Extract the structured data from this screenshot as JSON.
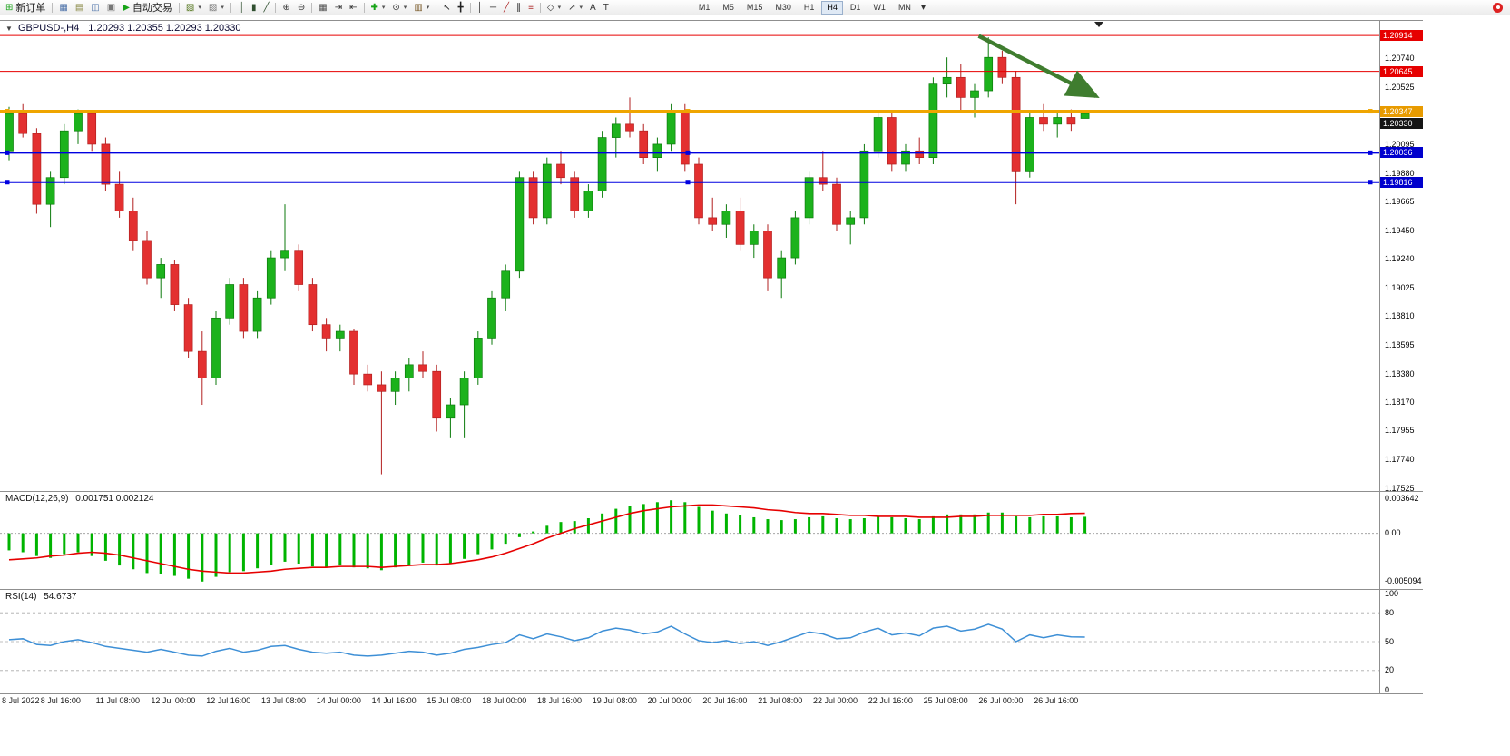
{
  "toolbar": {
    "left_items": [
      {
        "type": "button",
        "name": "new-order",
        "glyph": "⊞",
        "glyph_color": "#1fa51f",
        "label": "新订单"
      },
      {
        "type": "sep"
      },
      {
        "type": "icon",
        "name": "market-watch",
        "glyph": "▦",
        "glyph_color": "#4a70a8"
      },
      {
        "type": "icon",
        "name": "data-window",
        "glyph": "▤",
        "glyph_color": "#8a8a46"
      },
      {
        "type": "icon",
        "name": "navigator",
        "glyph": "◫",
        "glyph_color": "#4a70a8"
      },
      {
        "type": "icon",
        "name": "terminal",
        "glyph": "▣",
        "glyph_color": "#777777"
      },
      {
        "type": "button",
        "name": "autotrading",
        "glyph": "▶",
        "glyph_color": "#17a317",
        "label": "自动交易"
      },
      {
        "type": "sep"
      },
      {
        "type": "icon",
        "name": "new-chart",
        "glyph": "▧",
        "glyph_color": "#55771f",
        "dropdown": true
      },
      {
        "type": "icon",
        "name": "profiles",
        "glyph": "▨",
        "glyph_color": "#777777",
        "dropdown": true
      },
      {
        "type": "sep"
      },
      {
        "type": "icon",
        "name": "bar-chart",
        "glyph": "║",
        "glyph_color": "#2f4f2f"
      },
      {
        "type": "icon",
        "name": "candlestick-chart",
        "glyph": "▮",
        "glyph_color": "#2f4f2f"
      },
      {
        "type": "icon",
        "name": "line-chart",
        "glyph": "╱",
        "glyph_color": "#2f4f2f"
      },
      {
        "type": "sep"
      },
      {
        "type": "icon",
        "name": "zoom-in",
        "glyph": "⊕",
        "glyph_color": "#333333"
      },
      {
        "type": "icon",
        "name": "zoom-out",
        "glyph": "⊖",
        "glyph_color": "#333333"
      },
      {
        "type": "sep"
      },
      {
        "type": "icon",
        "name": "tile-windows",
        "glyph": "▦",
        "glyph_color": "#555555"
      },
      {
        "type": "icon",
        "name": "auto-scroll",
        "glyph": "⇥",
        "glyph_color": "#333333"
      },
      {
        "type": "icon",
        "name": "chart-shift",
        "glyph": "⇤",
        "glyph_color": "#333333"
      },
      {
        "type": "sep"
      },
      {
        "type": "icon",
        "name": "indicators",
        "glyph": "✚",
        "glyph_color": "#17a317",
        "dropdown": true
      },
      {
        "type": "icon",
        "name": "periods",
        "glyph": "⊙",
        "glyph_color": "#333333",
        "dropdown": true
      },
      {
        "type": "icon",
        "name": "templates",
        "glyph": "▥",
        "glyph_color": "#7a5a2a",
        "dropdown": true
      },
      {
        "type": "sep"
      },
      {
        "type": "icon",
        "name": "cursor",
        "glyph": "↖",
        "glyph_color": "#222222"
      },
      {
        "type": "icon",
        "name": "crosshair",
        "glyph": "╋",
        "glyph_color": "#222222"
      },
      {
        "type": "sep"
      },
      {
        "type": "icon",
        "name": "vertical-line",
        "glyph": "│",
        "glyph_color": "#222222"
      },
      {
        "type": "icon",
        "name": "horizontal-line",
        "glyph": "─",
        "glyph_color": "#222222"
      },
      {
        "type": "icon",
        "name": "trendline",
        "glyph": "╱",
        "glyph_color": "#b03030"
      },
      {
        "type": "icon",
        "name": "equidistant-channel",
        "glyph": "∥",
        "glyph_color": "#222222"
      },
      {
        "type": "icon",
        "name": "fibonacci-retracement",
        "glyph": "≡",
        "glyph_color": "#b03030"
      },
      {
        "type": "sep"
      },
      {
        "type": "icon",
        "name": "shapes",
        "glyph": "◇",
        "glyph_color": "#333333",
        "dropdown": true
      },
      {
        "type": "icon",
        "name": "arrows",
        "glyph": "↗",
        "glyph_color": "#333333",
        "dropdown": true
      },
      {
        "type": "icon",
        "name": "text",
        "glyph": "A",
        "glyph_color": "#333333"
      },
      {
        "type": "icon",
        "name": "text-label",
        "glyph": "T",
        "glyph_color": "#333333"
      },
      {
        "type": "spacer"
      }
    ],
    "timeframes": [
      "M1",
      "M5",
      "M15",
      "M30",
      "H1",
      "H4",
      "D1",
      "W1",
      "MN"
    ],
    "active_timeframe": "H4",
    "overflow_glyph": "▾",
    "notification_color": "#dd2222"
  },
  "chart": {
    "header_symbol": "GBPUSD-,H4",
    "header_ohlc": "1.20293 1.20355 1.20293 1.20330",
    "collapse_glyph": "▼",
    "price_axis_labels": [
      "1.20740",
      "1.20525",
      "1.20095",
      "1.19880",
      "1.19665",
      "1.19450",
      "1.19240",
      "1.19025",
      "1.18810",
      "1.18595",
      "1.18380",
      "1.18170",
      "1.17955",
      "1.17740",
      "1.17525"
    ],
    "current_price_badge": {
      "text": "1.20330",
      "bg": "#151515"
    },
    "lines": [
      {
        "name": "resistance-line-1",
        "price": 1.20914,
        "color": "#e60000",
        "width": 1,
        "badge": "1.20914",
        "badge_bg": "#e60000",
        "handles": false
      },
      {
        "name": "resistance-line-2",
        "price": 1.20645,
        "color": "#e60000",
        "width": 1,
        "badge": "1.20645",
        "badge_bg": "#e60000",
        "handles": false
      },
      {
        "name": "pivot-line-orange",
        "price": 1.20347,
        "color": "#efa500",
        "width": 3,
        "badge": "1.20347",
        "badge_bg": "#e89b00",
        "handles": true
      },
      {
        "name": "support-line-1",
        "price": 1.20036,
        "color": "#0000e0",
        "width": 2,
        "badge": "1.20036",
        "badge_bg": "#0000cd",
        "handles": true
      },
      {
        "name": "support-line-2",
        "price": 1.19816,
        "color": "#0000e0",
        "width": 2,
        "badge": "1.19816",
        "badge_bg": "#0000cd",
        "handles": true
      }
    ],
    "trend_arrow": {
      "from_bar": 70.3,
      "from_price": 1.2091,
      "to_bar": 78.8,
      "to_price": 1.2046,
      "color": "#3f7d2f"
    },
    "bull_color": "#1cb21c",
    "bear_color": "#e33030",
    "bull_wick": "#0c7a0c",
    "bear_wick": "#b22020"
  },
  "chart_data": {
    "type": "candlestick",
    "symbol": "GBPUSD",
    "period": "H4",
    "x_labels": [
      [
        0,
        "8 Jul 2022"
      ],
      [
        4,
        "8 Jul 16:00"
      ],
      [
        8,
        "11 Jul 08:00"
      ],
      [
        12,
        "12 Jul 00:00"
      ],
      [
        16,
        "12 Jul 16:00"
      ],
      [
        20,
        "13 Jul 08:00"
      ],
      [
        24,
        "14 Jul 00:00"
      ],
      [
        28,
        "14 Jul 16:00"
      ],
      [
        32,
        "15 Jul 08:00"
      ],
      [
        36,
        "18 Jul 00:00"
      ],
      [
        40,
        "18 Jul 16:00"
      ],
      [
        44,
        "19 Jul 08:00"
      ],
      [
        48,
        "20 Jul 00:00"
      ],
      [
        52,
        "20 Jul 16:00"
      ],
      [
        56,
        "21 Jul 08:00"
      ],
      [
        60,
        "22 Jul 00:00"
      ],
      [
        64,
        "22 Jul 16:00"
      ],
      [
        68,
        "25 Jul 08:00"
      ],
      [
        72,
        "26 Jul 00:00"
      ],
      [
        76,
        "26 Jul 16:00"
      ]
    ],
    "candles": [
      [
        1.2005,
        1.2038,
        1.1998,
        1.2033
      ],
      [
        1.2033,
        1.204,
        1.2015,
        1.2018
      ],
      [
        1.2018,
        1.2022,
        1.1958,
        1.1965
      ],
      [
        1.1965,
        1.199,
        1.1948,
        1.1985
      ],
      [
        1.1985,
        1.2025,
        1.198,
        1.202
      ],
      [
        1.202,
        1.2036,
        1.201,
        1.2033
      ],
      [
        1.2033,
        1.2035,
        1.2005,
        1.201
      ],
      [
        1.201,
        1.2015,
        1.1975,
        1.198
      ],
      [
        1.198,
        1.199,
        1.1955,
        1.196
      ],
      [
        1.196,
        1.197,
        1.193,
        1.1938
      ],
      [
        1.1938,
        1.1945,
        1.1905,
        1.191
      ],
      [
        1.191,
        1.1925,
        1.1895,
        1.192
      ],
      [
        1.192,
        1.1923,
        1.1885,
        1.189
      ],
      [
        1.189,
        1.1895,
        1.185,
        1.1855
      ],
      [
        1.1855,
        1.187,
        1.1815,
        1.1835
      ],
      [
        1.1835,
        1.1885,
        1.183,
        1.188
      ],
      [
        1.188,
        1.191,
        1.1875,
        1.1905
      ],
      [
        1.1905,
        1.191,
        1.1865,
        1.187
      ],
      [
        1.187,
        1.19,
        1.1865,
        1.1895
      ],
      [
        1.1895,
        1.193,
        1.189,
        1.1925
      ],
      [
        1.1925,
        1.1965,
        1.1915,
        1.193
      ],
      [
        1.193,
        1.1935,
        1.19,
        1.1905
      ],
      [
        1.1905,
        1.191,
        1.187,
        1.1875
      ],
      [
        1.1875,
        1.188,
        1.1855,
        1.1865
      ],
      [
        1.1865,
        1.1875,
        1.1855,
        1.187
      ],
      [
        1.187,
        1.1872,
        1.183,
        1.1838
      ],
      [
        1.1838,
        1.1845,
        1.1825,
        1.183
      ],
      [
        1.183,
        1.184,
        1.1763,
        1.1825
      ],
      [
        1.1825,
        1.184,
        1.1815,
        1.1835
      ],
      [
        1.1835,
        1.185,
        1.1825,
        1.1845
      ],
      [
        1.1845,
        1.1855,
        1.1835,
        1.184
      ],
      [
        1.184,
        1.1845,
        1.1795,
        1.1805
      ],
      [
        1.1805,
        1.182,
        1.179,
        1.1815
      ],
      [
        1.1815,
        1.184,
        1.179,
        1.1835
      ],
      [
        1.1835,
        1.187,
        1.183,
        1.1865
      ],
      [
        1.1865,
        1.19,
        1.186,
        1.1895
      ],
      [
        1.1895,
        1.192,
        1.1885,
        1.1915
      ],
      [
        1.1915,
        1.199,
        1.191,
        1.1985
      ],
      [
        1.1985,
        1.199,
        1.195,
        1.1955
      ],
      [
        1.1955,
        1.2,
        1.195,
        1.1995
      ],
      [
        1.1995,
        1.2005,
        1.198,
        1.1985
      ],
      [
        1.1985,
        1.199,
        1.1955,
        1.196
      ],
      [
        1.196,
        1.198,
        1.1955,
        1.1975
      ],
      [
        1.1975,
        1.202,
        1.197,
        1.2015
      ],
      [
        1.2015,
        1.203,
        1.2,
        1.2025
      ],
      [
        1.2025,
        1.2045,
        1.2015,
        1.202
      ],
      [
        1.202,
        1.2025,
        1.1995,
        1.2
      ],
      [
        1.2,
        1.2015,
        1.199,
        1.201
      ],
      [
        1.201,
        1.204,
        1.2005,
        1.2035
      ],
      [
        1.2035,
        1.204,
        1.199,
        1.1995
      ],
      [
        1.1995,
        1.2,
        1.195,
        1.1955
      ],
      [
        1.1955,
        1.197,
        1.1945,
        1.195
      ],
      [
        1.195,
        1.1965,
        1.194,
        1.196
      ],
      [
        1.196,
        1.197,
        1.193,
        1.1935
      ],
      [
        1.1935,
        1.195,
        1.1925,
        1.1945
      ],
      [
        1.1945,
        1.195,
        1.19,
        1.191
      ],
      [
        1.191,
        1.193,
        1.1895,
        1.1925
      ],
      [
        1.1925,
        1.196,
        1.192,
        1.1955
      ],
      [
        1.1955,
        1.199,
        1.195,
        1.1985
      ],
      [
        1.1985,
        1.2005,
        1.1975,
        1.198
      ],
      [
        1.198,
        1.1985,
        1.1945,
        1.195
      ],
      [
        1.195,
        1.196,
        1.1935,
        1.1955
      ],
      [
        1.1955,
        1.201,
        1.195,
        1.2005
      ],
      [
        1.2005,
        1.2035,
        1.2,
        1.203
      ],
      [
        1.203,
        1.2035,
        1.199,
        1.1995
      ],
      [
        1.1995,
        1.201,
        1.199,
        1.2005
      ],
      [
        1.2005,
        1.2015,
        1.1995,
        1.2
      ],
      [
        1.2,
        1.206,
        1.1995,
        1.2055
      ],
      [
        1.2055,
        1.2075,
        1.2045,
        1.206
      ],
      [
        1.206,
        1.207,
        1.2035,
        1.2045
      ],
      [
        1.2045,
        1.2055,
        1.203,
        1.205
      ],
      [
        1.205,
        1.209,
        1.2045,
        1.2075
      ],
      [
        1.2075,
        1.208,
        1.2055,
        1.206
      ],
      [
        1.206,
        1.2065,
        1.1965,
        1.199
      ],
      [
        1.199,
        1.2035,
        1.1985,
        1.203
      ],
      [
        1.203,
        1.204,
        1.202,
        1.2025
      ],
      [
        1.2025,
        1.2035,
        1.2015,
        1.203
      ],
      [
        1.203,
        1.2036,
        1.202,
        1.2025
      ],
      [
        1.20293,
        1.20355,
        1.20293,
        1.2033
      ]
    ],
    "indicators": {
      "macd": {
        "label": "MACD(12,26,9)",
        "values_text": "0.001751 0.002124",
        "main_value": 0.001751,
        "signal_value": 0.002124,
        "axis_labels": [
          "0.003642",
          "0.00",
          "-0.005094"
        ],
        "axis_values": [
          0.003642,
          0,
          -0.005094
        ],
        "histogram_color": "#00b400",
        "signal_color": "#e60000",
        "histogram": [
          -0.0018,
          -0.002,
          -0.0024,
          -0.0026,
          -0.0022,
          -0.002,
          -0.0024,
          -0.0029,
          -0.0034,
          -0.0038,
          -0.0042,
          -0.0043,
          -0.0045,
          -0.0048,
          -0.0051,
          -0.0046,
          -0.0041,
          -0.004,
          -0.0037,
          -0.0033,
          -0.003,
          -0.0032,
          -0.0035,
          -0.0036,
          -0.0034,
          -0.0036,
          -0.0037,
          -0.0039,
          -0.0036,
          -0.0033,
          -0.0031,
          -0.0034,
          -0.0032,
          -0.0027,
          -0.0022,
          -0.0017,
          -0.0011,
          -0.0004,
          0.0002,
          0.0008,
          0.0012,
          0.0013,
          0.0016,
          0.0021,
          0.0026,
          0.0029,
          0.0031,
          0.0033,
          0.0035,
          0.0033,
          0.0028,
          0.0024,
          0.0021,
          0.0019,
          0.0017,
          0.0015,
          0.0014,
          0.0015,
          0.0017,
          0.0018,
          0.0016,
          0.0015,
          0.0016,
          0.0018,
          0.0017,
          0.0016,
          0.0015,
          0.0018,
          0.002,
          0.002,
          0.002,
          0.0022,
          0.0022,
          0.0018,
          0.0017,
          0.0018,
          0.0018,
          0.0017,
          0.001751
        ],
        "signal": [
          -0.0028,
          -0.0027,
          -0.0026,
          -0.0024,
          -0.0023,
          -0.0021,
          -0.002,
          -0.0021,
          -0.0023,
          -0.0026,
          -0.0029,
          -0.0032,
          -0.0035,
          -0.0038,
          -0.004,
          -0.0041,
          -0.0042,
          -0.0042,
          -0.0041,
          -0.004,
          -0.0038,
          -0.0037,
          -0.0036,
          -0.0036,
          -0.0035,
          -0.0035,
          -0.0035,
          -0.0036,
          -0.0035,
          -0.0034,
          -0.0033,
          -0.0033,
          -0.0032,
          -0.003,
          -0.0028,
          -0.0025,
          -0.0021,
          -0.0016,
          -0.0011,
          -0.0005,
          0.0,
          0.0005,
          0.0009,
          0.0013,
          0.0017,
          0.0021,
          0.0024,
          0.0026,
          0.0028,
          0.0029,
          0.003,
          0.003,
          0.0029,
          0.0028,
          0.0027,
          0.0025,
          0.0024,
          0.0022,
          0.0021,
          0.0021,
          0.002,
          0.0019,
          0.0019,
          0.0018,
          0.0018,
          0.0018,
          0.0017,
          0.0017,
          0.0017,
          0.0018,
          0.0018,
          0.0019,
          0.0019,
          0.0019,
          0.0019,
          0.002,
          0.002,
          0.0021,
          0.002124
        ]
      },
      "rsi": {
        "label": "RSI(14)",
        "value_text": "54.6737",
        "value": 54.6737,
        "levels": [
          80,
          50,
          20
        ],
        "axis_labels": [
          "100",
          "80",
          "50",
          "20",
          "0"
        ],
        "axis_values": [
          100,
          80,
          50,
          20,
          0
        ],
        "line_color": "#3d8fd6",
        "values": [
          52,
          53,
          47,
          46,
          50,
          52,
          49,
          45,
          43,
          41,
          39,
          42,
          39,
          36,
          35,
          40,
          43,
          39,
          41,
          45,
          46,
          42,
          39,
          38,
          39,
          36,
          35,
          36,
          38,
          40,
          39,
          36,
          38,
          42,
          44,
          47,
          49,
          57,
          53,
          58,
          55,
          51,
          54,
          61,
          64,
          62,
          58,
          60,
          66,
          58,
          51,
          49,
          51,
          48,
          50,
          46,
          50,
          55,
          60,
          58,
          53,
          54,
          60,
          64,
          57,
          59,
          56,
          64,
          66,
          61,
          63,
          68,
          63,
          50,
          57,
          54,
          57,
          55,
          54.6737
        ]
      }
    }
  }
}
